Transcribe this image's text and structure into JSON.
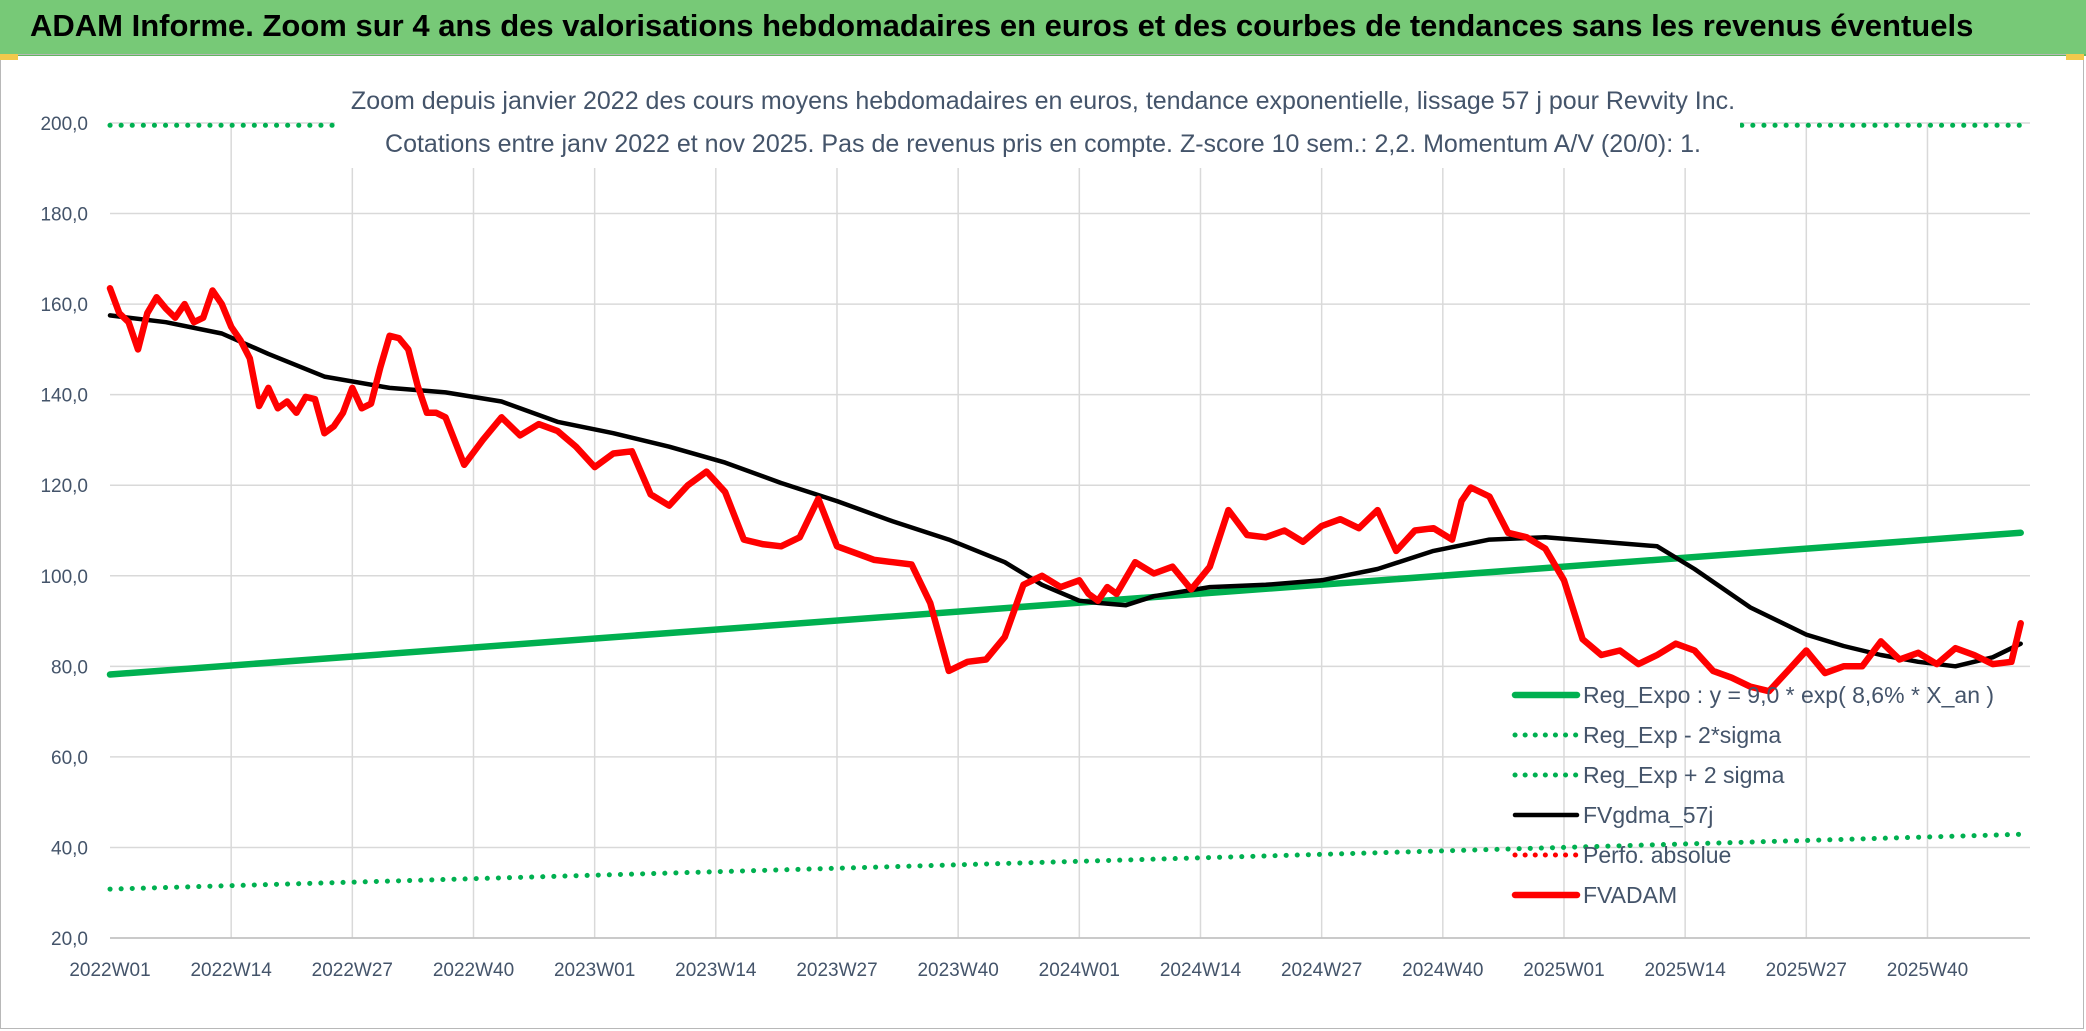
{
  "banner": {
    "title": "ADAM Informe. Zoom sur 4 ans des valorisations hebdomadaires en euros et des courbes de tendances sans les revenus éventuels"
  },
  "colors": {
    "banner": "#77c977",
    "regression": "#00b050",
    "trend": "#000000",
    "price": "#ff0000",
    "grid": "#d9d9d9",
    "text": "#44546a"
  },
  "chart_data": {
    "type": "line",
    "title": "Zoom depuis janvier 2022 des cours moyens hebdomadaires en euros, tendance exponentielle, lissage 57 j pour Revvity Inc.",
    "subtitle": "Cotations entre janv 2022 et nov 2025. Pas de revenus pris en compte. Z-score 10 sem.: 2,2. Momentum A/V (20/0): 1.",
    "xlabel": "",
    "ylabel": "",
    "ylim": [
      20,
      200
    ],
    "yticks": [
      "20,0",
      "40,0",
      "60,0",
      "80,0",
      "100,0",
      "120,0",
      "140,0",
      "160,0",
      "180,0",
      "200,0"
    ],
    "x_tick_labels": [
      "2022W01",
      "2022W14",
      "2022W27",
      "2022W40",
      "2023W01",
      "2023W14",
      "2023W27",
      "2023W40",
      "2024W01",
      "2024W14",
      "2024W27",
      "2024W40",
      "2025W01",
      "2025W14",
      "2025W27",
      "2025W40"
    ],
    "x_tick_step_weeks": 13,
    "n_weeks": 206,
    "grid": true,
    "legend_position": "bottom-right",
    "series": [
      {
        "name": "Reg_Expo : y = 9,0 * exp( 8,6% * X_an )",
        "style": "solid",
        "color": "#00b050",
        "x": [
          0,
          205
        ],
        "values": [
          78.2,
          109.5
        ]
      },
      {
        "name": "Reg_Exp - 2*sigma",
        "style": "dotted",
        "color": "#00b050",
        "x": [
          0,
          205
        ],
        "values": [
          30.8,
          42.9
        ]
      },
      {
        "name": "Reg_Exp + 2 sigma",
        "style": "dotted",
        "color": "#00b050",
        "x": [
          0,
          205
        ],
        "values": [
          199.5,
          199.5
        ]
      },
      {
        "name": "FVgdma_57j",
        "style": "solid",
        "color": "#000000",
        "x": [
          0,
          6,
          12,
          17,
          23,
          30,
          36,
          42,
          48,
          54,
          60,
          66,
          72,
          78,
          84,
          90,
          96,
          100,
          104,
          106,
          109,
          112,
          118,
          124,
          130,
          136,
          142,
          148,
          154,
          160,
          166,
          170,
          176,
          182,
          186,
          190,
          194,
          198,
          202,
          205
        ],
        "values": [
          157.5,
          156.0,
          153.5,
          149.0,
          144.0,
          141.5,
          140.5,
          138.5,
          134.0,
          131.5,
          128.5,
          125.0,
          120.5,
          116.5,
          112.0,
          108.0,
          103.0,
          98.0,
          94.5,
          94.0,
          93.5,
          95.5,
          97.5,
          98.0,
          99.0,
          101.5,
          105.5,
          108.0,
          108.5,
          107.5,
          106.5,
          101.5,
          93.0,
          87.0,
          84.5,
          82.5,
          81.0,
          80.0,
          82.0,
          85.0
        ]
      },
      {
        "name": "Perfo. absolue",
        "style": "dotted",
        "color": "#ff0000",
        "x": [],
        "values": []
      },
      {
        "name": "FVADAM",
        "style": "solid",
        "color": "#ff0000",
        "x": [
          0,
          1,
          2,
          3,
          4,
          5,
          6,
          7,
          8,
          9,
          10,
          11,
          12,
          13,
          14,
          15,
          16,
          17,
          18,
          19,
          20,
          21,
          22,
          23,
          24,
          25,
          26,
          27,
          28,
          29,
          30,
          31,
          32,
          33,
          34,
          35,
          36,
          38,
          40,
          42,
          44,
          46,
          48,
          50,
          52,
          54,
          56,
          58,
          60,
          62,
          64,
          66,
          68,
          70,
          72,
          74,
          76,
          78,
          80,
          82,
          84,
          86,
          88,
          90,
          92,
          94,
          96,
          98,
          100,
          102,
          104,
          105,
          106,
          107,
          108,
          109,
          110,
          112,
          114,
          116,
          118,
          120,
          122,
          124,
          126,
          128,
          130,
          132,
          134,
          136,
          138,
          140,
          142,
          144,
          145,
          146,
          148,
          150,
          152,
          154,
          156,
          158,
          160,
          162,
          164,
          166,
          168,
          170,
          172,
          174,
          176,
          178,
          180,
          182,
          184,
          186,
          188,
          190,
          192,
          194,
          196,
          198,
          200,
          202,
          204,
          205
        ],
        "values": [
          163.5,
          158.0,
          156.0,
          150.0,
          158.0,
          161.5,
          159.0,
          157.0,
          160.0,
          156.0,
          157.0,
          163.0,
          160.0,
          155.0,
          152.0,
          148.0,
          137.5,
          141.5,
          137.0,
          138.5,
          136.0,
          139.5,
          139.0,
          131.5,
          133.0,
          136.0,
          141.5,
          137.0,
          138.0,
          146.0,
          153.0,
          152.5,
          150.0,
          142.0,
          136.0,
          136.0,
          135.0,
          124.5,
          130.0,
          135.0,
          131.0,
          133.5,
          132.0,
          128.5,
          124.0,
          127.0,
          127.5,
          118.0,
          115.5,
          120.0,
          123.0,
          118.5,
          108.0,
          107.0,
          106.5,
          108.5,
          117.0,
          106.5,
          105.0,
          103.5,
          103.0,
          102.5,
          94.0,
          79.0,
          81.0,
          81.5,
          86.5,
          98.0,
          100.0,
          97.5,
          99.0,
          96.0,
          94.5,
          97.5,
          96.0,
          99.5,
          103.0,
          100.5,
          102.0,
          97.0,
          102.0,
          114.5,
          109.0,
          108.5,
          110.0,
          107.5,
          111.0,
          112.5,
          110.5,
          114.5,
          105.5,
          110.0,
          110.5,
          108.0,
          116.5,
          119.5,
          117.5,
          109.5,
          108.5,
          106.0,
          99.0,
          86.0,
          82.5,
          83.5,
          80.5,
          82.5,
          85.0,
          83.5,
          79.0,
          77.5,
          75.5,
          74.5,
          79.0,
          83.5,
          78.5,
          80.0,
          80.0,
          85.5,
          81.5,
          83.0,
          80.5,
          84.0,
          82.5,
          80.5,
          81.0,
          89.5
        ]
      }
    ],
    "legend": [
      {
        "label": "Reg_Expo : y = 9,0 * exp( 8,6% * X_an )",
        "style": "solid",
        "color": "#00b050"
      },
      {
        "label": "Reg_Exp - 2*sigma",
        "style": "dotted",
        "color": "#00b050"
      },
      {
        "label": "Reg_Exp + 2 sigma",
        "style": "dotted",
        "color": "#00b050"
      },
      {
        "label": "FVgdma_57j",
        "style": "solid",
        "color": "#000000"
      },
      {
        "label": "Perfo. absolue",
        "style": "dotted",
        "color": "#ff0000"
      },
      {
        "label": "FVADAM",
        "style": "solid",
        "color": "#ff0000"
      }
    ]
  }
}
